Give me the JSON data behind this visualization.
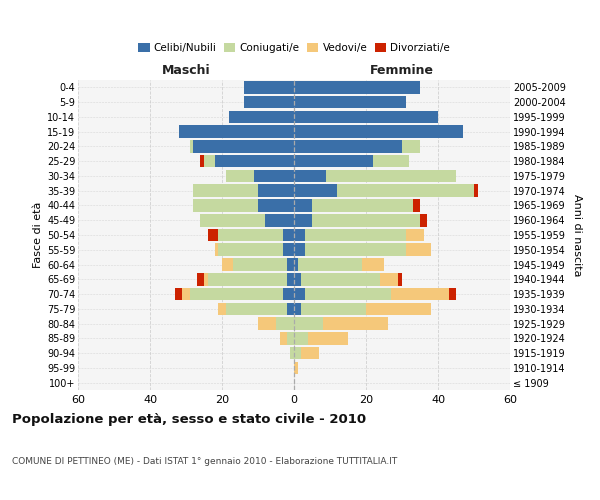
{
  "age_groups": [
    "100+",
    "95-99",
    "90-94",
    "85-89",
    "80-84",
    "75-79",
    "70-74",
    "65-69",
    "60-64",
    "55-59",
    "50-54",
    "45-49",
    "40-44",
    "35-39",
    "30-34",
    "25-29",
    "20-24",
    "15-19",
    "10-14",
    "5-9",
    "0-4"
  ],
  "birth_years": [
    "≤ 1909",
    "1910-1914",
    "1915-1919",
    "1920-1924",
    "1925-1929",
    "1930-1934",
    "1935-1939",
    "1940-1944",
    "1945-1949",
    "1950-1954",
    "1955-1959",
    "1960-1964",
    "1965-1969",
    "1970-1974",
    "1975-1979",
    "1980-1984",
    "1985-1989",
    "1990-1994",
    "1995-1999",
    "2000-2004",
    "2005-2009"
  ],
  "male": {
    "celibi": [
      0,
      0,
      0,
      0,
      0,
      2,
      3,
      2,
      2,
      3,
      3,
      8,
      10,
      10,
      11,
      22,
      28,
      32,
      18,
      14,
      14
    ],
    "coniugati": [
      0,
      0,
      1,
      2,
      5,
      17,
      26,
      22,
      15,
      18,
      18,
      18,
      18,
      18,
      8,
      3,
      1,
      0,
      0,
      0,
      0
    ],
    "vedovi": [
      0,
      0,
      0,
      2,
      5,
      2,
      2,
      1,
      3,
      1,
      0,
      0,
      0,
      0,
      0,
      0,
      0,
      0,
      0,
      0,
      0
    ],
    "divorziati": [
      0,
      0,
      0,
      0,
      0,
      0,
      2,
      2,
      0,
      0,
      3,
      0,
      0,
      0,
      0,
      1,
      0,
      0,
      0,
      0,
      0
    ]
  },
  "female": {
    "nubili": [
      0,
      0,
      0,
      0,
      0,
      2,
      3,
      2,
      1,
      3,
      3,
      5,
      5,
      12,
      9,
      22,
      30,
      47,
      40,
      31,
      35
    ],
    "coniugate": [
      0,
      0,
      2,
      4,
      8,
      18,
      24,
      22,
      18,
      28,
      28,
      30,
      28,
      38,
      36,
      10,
      5,
      0,
      0,
      0,
      0
    ],
    "vedove": [
      0,
      1,
      5,
      11,
      18,
      18,
      16,
      5,
      6,
      7,
      5,
      0,
      0,
      0,
      0,
      0,
      0,
      0,
      0,
      0,
      0
    ],
    "divorziate": [
      0,
      0,
      0,
      0,
      0,
      0,
      2,
      1,
      0,
      0,
      0,
      2,
      2,
      1,
      0,
      0,
      0,
      0,
      0,
      0,
      0
    ]
  },
  "colors": {
    "celibi": "#3a6fa8",
    "coniugati": "#c5d9a0",
    "vedovi": "#f5c87a",
    "divorziati": "#cc2200"
  },
  "title": "Popolazione per età, sesso e stato civile - 2010",
  "subtitle": "COMUNE DI PETTINEO (ME) - Dati ISTAT 1° gennaio 2010 - Elaborazione TUTTITALIA.IT",
  "ylabel_left": "Fasce di età",
  "ylabel_right": "Anni di nascita",
  "xlim": 60,
  "bg_color": "#f5f5f5",
  "grid_color": "#cccccc"
}
